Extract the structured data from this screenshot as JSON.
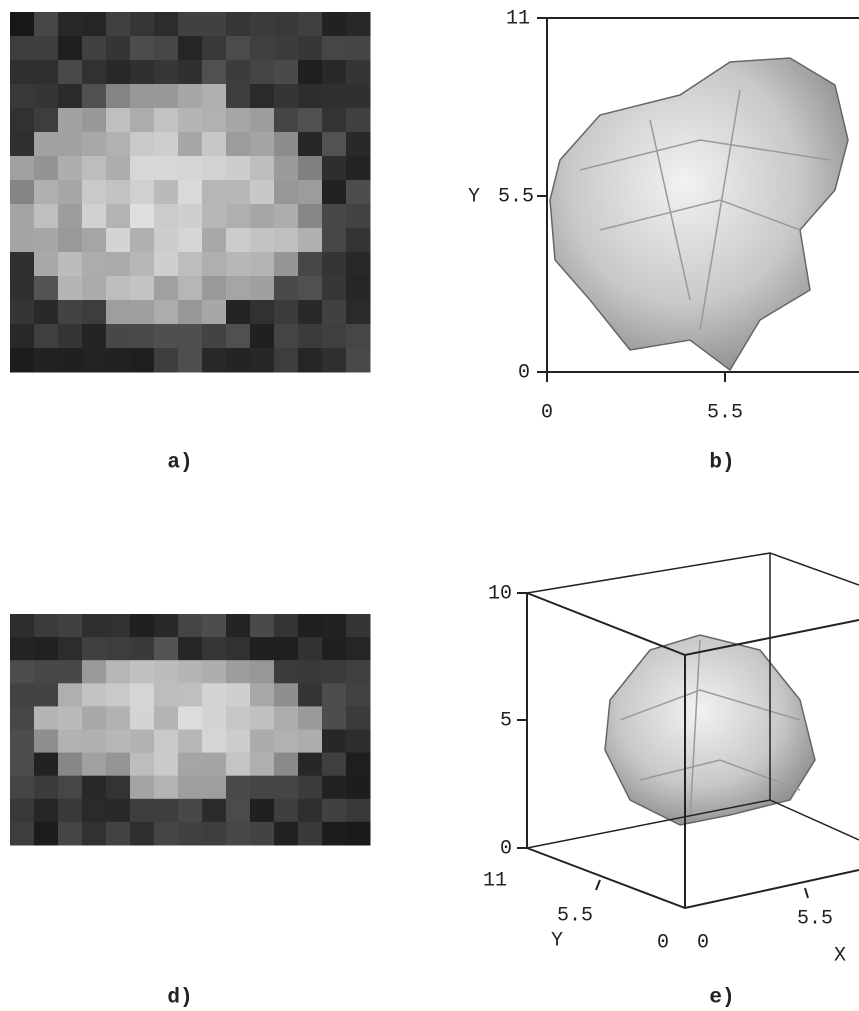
{
  "panels": [
    {
      "label": "a)"
    },
    {
      "label": "b)",
      "y_label": "Y",
      "y_ticks": [
        "11",
        "5.5",
        "0"
      ],
      "x_ticks": [
        "0",
        "5.5"
      ]
    },
    {
      "label": "d)"
    },
    {
      "label": "e)",
      "z_ticks": [
        "10",
        "5",
        "0"
      ],
      "y_ticks": [
        "11",
        "5.5",
        "0"
      ],
      "y_label": "Y",
      "x_ticks": [
        "0",
        "5.5"
      ],
      "x_label": "X"
    }
  ]
}
